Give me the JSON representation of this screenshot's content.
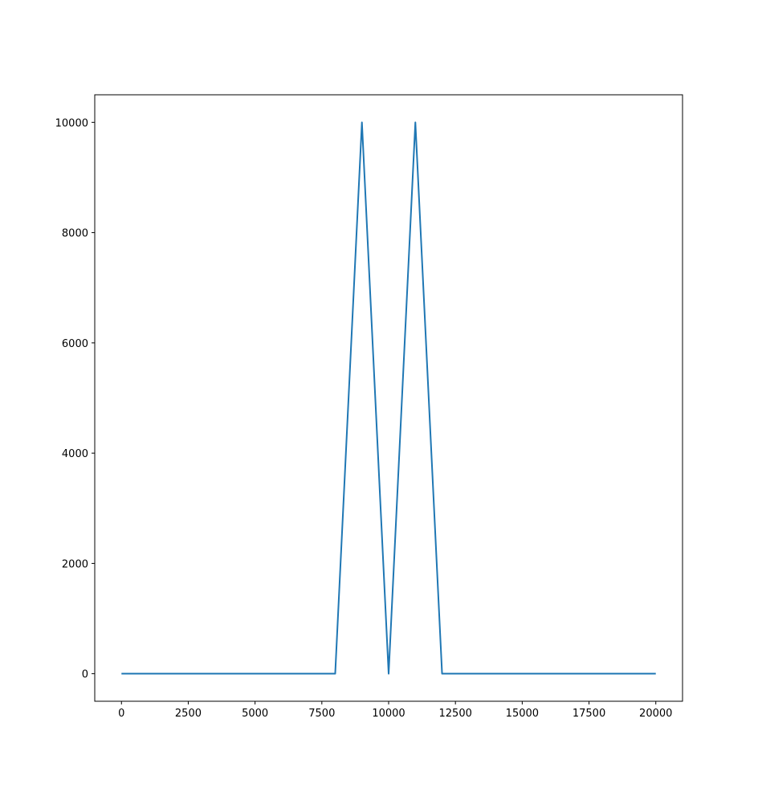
{
  "chart_data": {
    "type": "line",
    "title": "",
    "xlabel": "",
    "ylabel": "",
    "xlim": [
      -1000,
      21000
    ],
    "ylim": [
      -500,
      10500
    ],
    "grid": false,
    "x_ticks": [
      0,
      2500,
      5000,
      7500,
      10000,
      12500,
      15000,
      17500,
      20000
    ],
    "y_ticks": [
      0,
      2000,
      4000,
      6000,
      8000,
      10000
    ],
    "series": [
      {
        "color": "#1f77b4",
        "x": [
          0,
          8000,
          9000,
          10000,
          11000,
          12000,
          20000
        ],
        "y": [
          0,
          0,
          10000,
          0,
          10000,
          0,
          0
        ]
      }
    ]
  }
}
